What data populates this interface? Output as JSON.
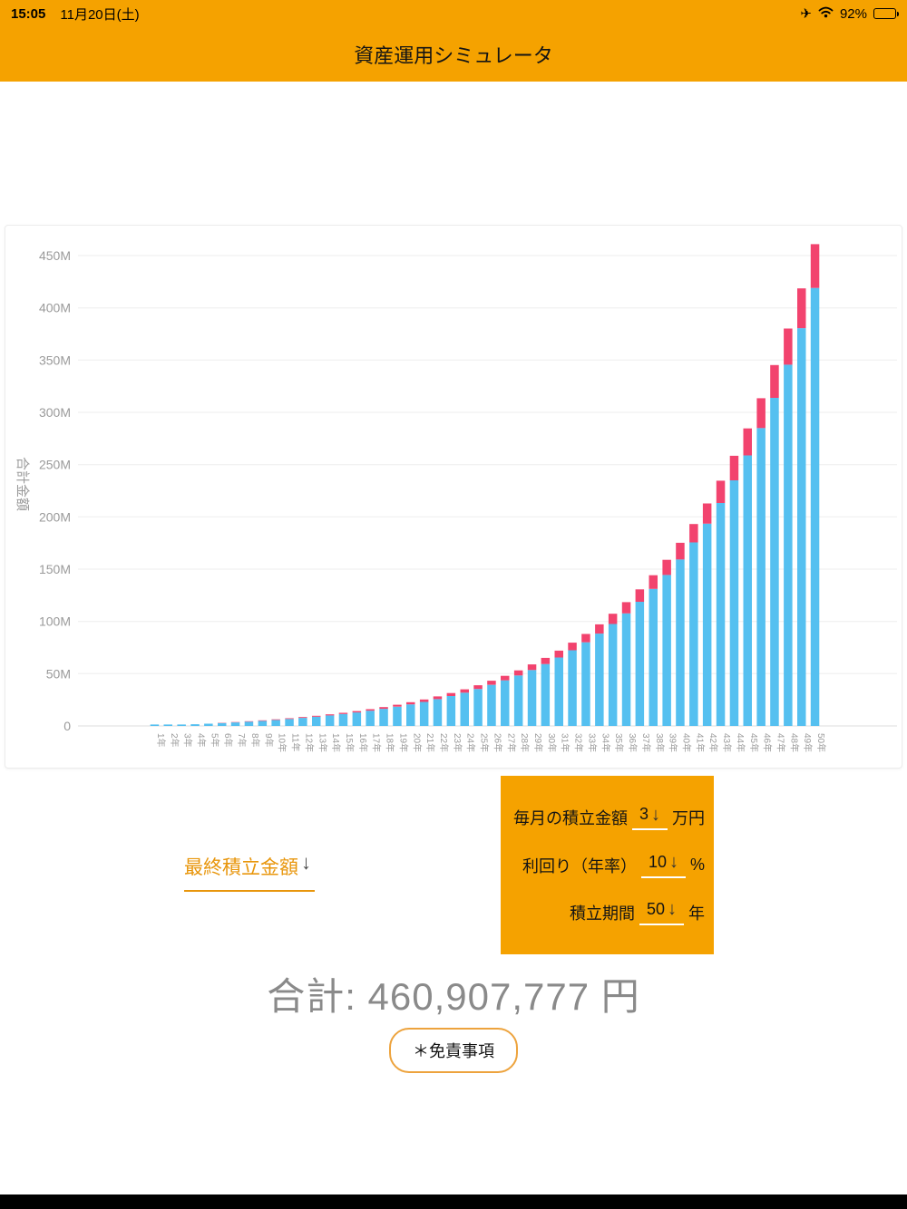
{
  "status_bar": {
    "time": "15:05",
    "date": "11月20日(土)",
    "battery_percent": "92%",
    "icons": {
      "airplane": "✈"
    }
  },
  "header": {
    "title": "資産運用シミュレータ"
  },
  "chart_data": {
    "type": "bar",
    "stacked": true,
    "ylabel": "合計金額",
    "categories": [
      "1年",
      "2年",
      "3年",
      "4年",
      "5年",
      "6年",
      "7年",
      "8年",
      "9年",
      "10年",
      "11年",
      "12年",
      "13年",
      "14年",
      "15年",
      "16年",
      "17年",
      "18年",
      "19年",
      "20年",
      "21年",
      "22年",
      "23年",
      "24年",
      "25年",
      "26年",
      "27年",
      "28年",
      "29年",
      "30年",
      "31年",
      "32年",
      "33年",
      "34年",
      "35年",
      "36年",
      "37年",
      "38年",
      "39年",
      "40年",
      "41年",
      "42年",
      "43年",
      "44年",
      "45年",
      "46年",
      "47年",
      "48年",
      "49年",
      "50年"
    ],
    "series": [
      {
        "name": "blue",
        "color": "#55C0F0",
        "values_m": [
          0.36,
          0.76,
          1.19,
          1.67,
          2.2,
          2.78,
          3.42,
          4.12,
          4.89,
          5.74,
          6.67,
          7.7,
          8.83,
          10.07,
          11.44,
          12.94,
          14.6,
          16.42,
          18.42,
          20.62,
          23.04,
          25.7,
          28.64,
          31.86,
          35.4,
          39.31,
          43.6,
          48.32,
          53.51,
          59.22,
          65.5,
          72.41,
          80.01,
          88.37,
          97.57,
          107.69,
          118.81,
          131.06,
          144.52,
          159.33,
          175.63,
          193.55,
          213.26,
          234.95,
          258.81,
          285.05,
          313.91,
          345.66,
          380.59,
          419.01
        ]
      },
      {
        "name": "pink",
        "color": "#F2436E",
        "values_m": [
          0.04,
          0.08,
          0.12,
          0.17,
          0.22,
          0.28,
          0.34,
          0.41,
          0.49,
          0.57,
          0.67,
          0.77,
          0.88,
          1.01,
          1.14,
          1.29,
          1.46,
          1.64,
          1.84,
          2.06,
          2.3,
          2.57,
          2.86,
          3.19,
          3.54,
          3.93,
          4.36,
          4.83,
          5.35,
          5.92,
          6.55,
          7.24,
          8.0,
          8.84,
          9.76,
          10.77,
          11.88,
          13.11,
          14.45,
          15.93,
          17.56,
          19.35,
          21.33,
          23.5,
          25.88,
          28.5,
          31.39,
          34.57,
          38.06,
          41.9
        ]
      }
    ],
    "totals_m": [
      0.4,
      0.83,
      1.31,
      1.84,
      2.42,
      3.06,
      3.76,
      4.53,
      5.38,
      6.31,
      7.34,
      8.47,
      9.71,
      11.08,
      12.58,
      14.24,
      16.06,
      18.06,
      20.26,
      22.68,
      25.34,
      28.28,
      31.5,
      35.04,
      38.95,
      43.24,
      47.96,
      53.15,
      58.86,
      65.14,
      72.05,
      79.65,
      88.01,
      97.21,
      107.33,
      118.45,
      130.7,
      144.16,
      158.97,
      175.27,
      193.19,
      212.9,
      234.59,
      258.45,
      284.69,
      313.55,
      345.3,
      380.23,
      418.65,
      460.91
    ],
    "ytick_values_m": [
      0,
      50,
      100,
      150,
      200,
      250,
      300,
      350,
      400,
      450
    ],
    "ytick_labels": [
      "0",
      "50M",
      "100M",
      "150M",
      "200M",
      "250M",
      "300M",
      "350M",
      "400M",
      "450M"
    ],
    "ylim_m": [
      0,
      461
    ],
    "grid": true,
    "legend": "none"
  },
  "result_link": {
    "label": "最終積立金額",
    "arrow": "↓"
  },
  "settings_panel": {
    "rows": [
      {
        "label": "毎月の積立金額",
        "value": "3",
        "arrow": "↓",
        "unit": "万円"
      },
      {
        "label": "利回り（年率）",
        "value": "10",
        "arrow": "↓",
        "unit": "%"
      },
      {
        "label": "積立期間",
        "value": "50",
        "arrow": "↓",
        "unit": "年"
      }
    ]
  },
  "summary": {
    "label": "合計:",
    "amount": "460,907,777",
    "unit": "円"
  },
  "disclaimer": {
    "label": "＊免責事項"
  },
  "colors": {
    "accent_orange": "#F5A200",
    "bar_blue": "#55C0F0",
    "bar_pink": "#F2436E",
    "gray_text": "#9a9a9a",
    "summary_gray": "#8a8a8a"
  }
}
